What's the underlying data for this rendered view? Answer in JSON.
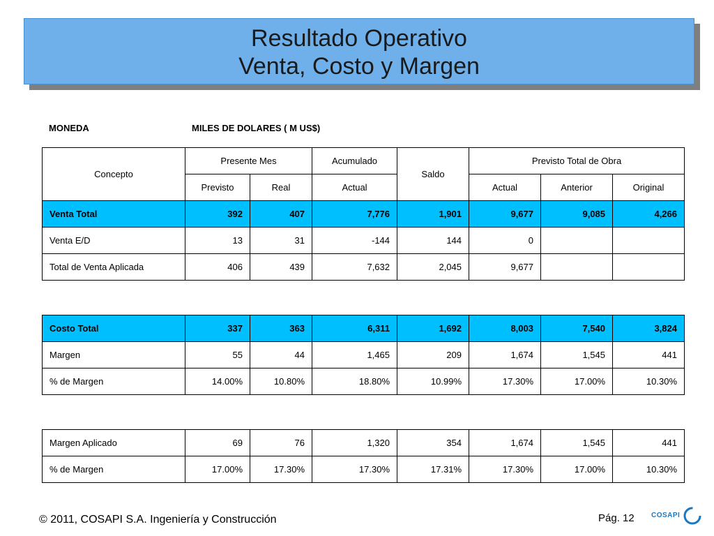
{
  "title": {
    "line1": "Resultado Operativo",
    "line2": "Venta, Costo y Margen"
  },
  "meta": {
    "currency_label": "MONEDA",
    "currency_value": "MILES DE DOLARES ( M US$)"
  },
  "table1": {
    "header": {
      "concepto": "Concepto",
      "presente_mes": "Presente Mes",
      "acumulado": "Acumulado",
      "saldo": "Saldo",
      "previsto_total": "Previsto Total de Obra",
      "sub": [
        "Previsto",
        "Real",
        "Actual",
        "Actual",
        "Anterior",
        "Original"
      ]
    },
    "rows": [
      [
        "Venta Total",
        "392",
        "407",
        "7,776",
        "1,901",
        "9,677",
        "9,085",
        "4,266"
      ],
      [
        "Venta E/D",
        "13",
        "31",
        "-144",
        "144",
        "0",
        "",
        ""
      ],
      [
        "Total de Venta Aplicada",
        "406",
        "439",
        "7,632",
        "2,045",
        "9,677",
        "",
        ""
      ]
    ]
  },
  "table2": {
    "rows": [
      [
        "Costo Total",
        "337",
        "363",
        "6,311",
        "1,692",
        "8,003",
        "7,540",
        "3,824"
      ],
      [
        "Margen",
        "55",
        "44",
        "1,465",
        "209",
        "1,674",
        "1,545",
        "441"
      ],
      [
        "% de Margen",
        "14.00%",
        "10.80%",
        "18.80%",
        "10.99%",
        "17.30%",
        "17.00%",
        "10.30%"
      ]
    ]
  },
  "table3": {
    "rows": [
      [
        "Margen Aplicado",
        "69",
        "76",
        "1,320",
        "354",
        "1,674",
        "1,545",
        "441"
      ],
      [
        "% de Margen",
        "17.00%",
        "17.30%",
        "17.30%",
        "17.31%",
        "17.30%",
        "17.00%",
        "10.30%"
      ]
    ]
  },
  "footer": {
    "copyright": "© 2011, COSAPI S.A. Ingeniería y Construcción",
    "page": "Pág. 12",
    "logo_text": "COSAPI"
  },
  "colors": {
    "banner": "#6fb0ea",
    "highlight_row": "#00bfff",
    "logo": "#1a78c2"
  }
}
